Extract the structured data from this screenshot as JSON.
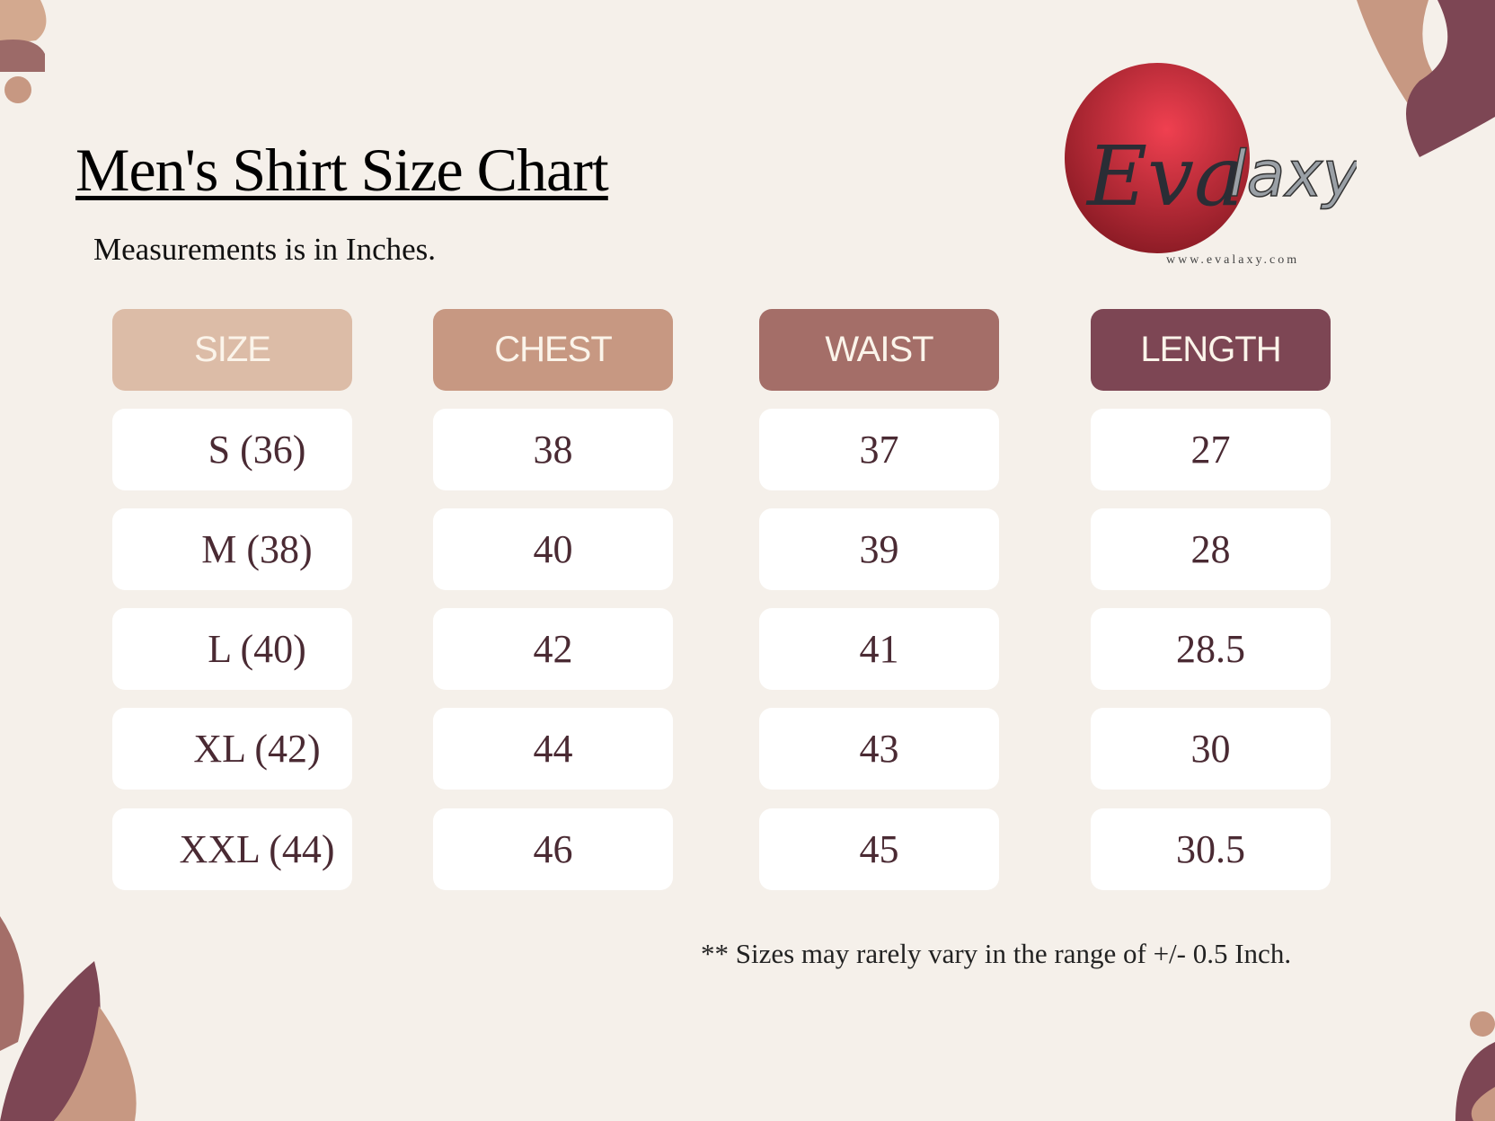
{
  "title": "Men's Shirt Size Chart",
  "subtitle": "Measurements is in Inches.",
  "brand": {
    "logo_text": "Evalaxy",
    "url": "www.evalaxy.com",
    "logo_color": "#d9323f"
  },
  "table": {
    "headers": [
      {
        "label": "SIZE",
        "color": "#dcbca7"
      },
      {
        "label": "CHEST",
        "color": "#c79882"
      },
      {
        "label": "WAIST",
        "color": "#a46e68"
      },
      {
        "label": "LENGTH",
        "color": "#7d4654"
      }
    ],
    "rows": [
      [
        "S (36)",
        "38",
        "37",
        "27"
      ],
      [
        "M (38)",
        "40",
        "39",
        "28"
      ],
      [
        "L (40)",
        "42",
        "41",
        "28.5"
      ],
      [
        "XL (42)",
        "44",
        "43",
        "30"
      ],
      [
        "XXL (44)",
        "46",
        "45",
        "30.5"
      ]
    ]
  },
  "footnote": "** Sizes may rarely vary in the range of +/- 0.5 Inch."
}
